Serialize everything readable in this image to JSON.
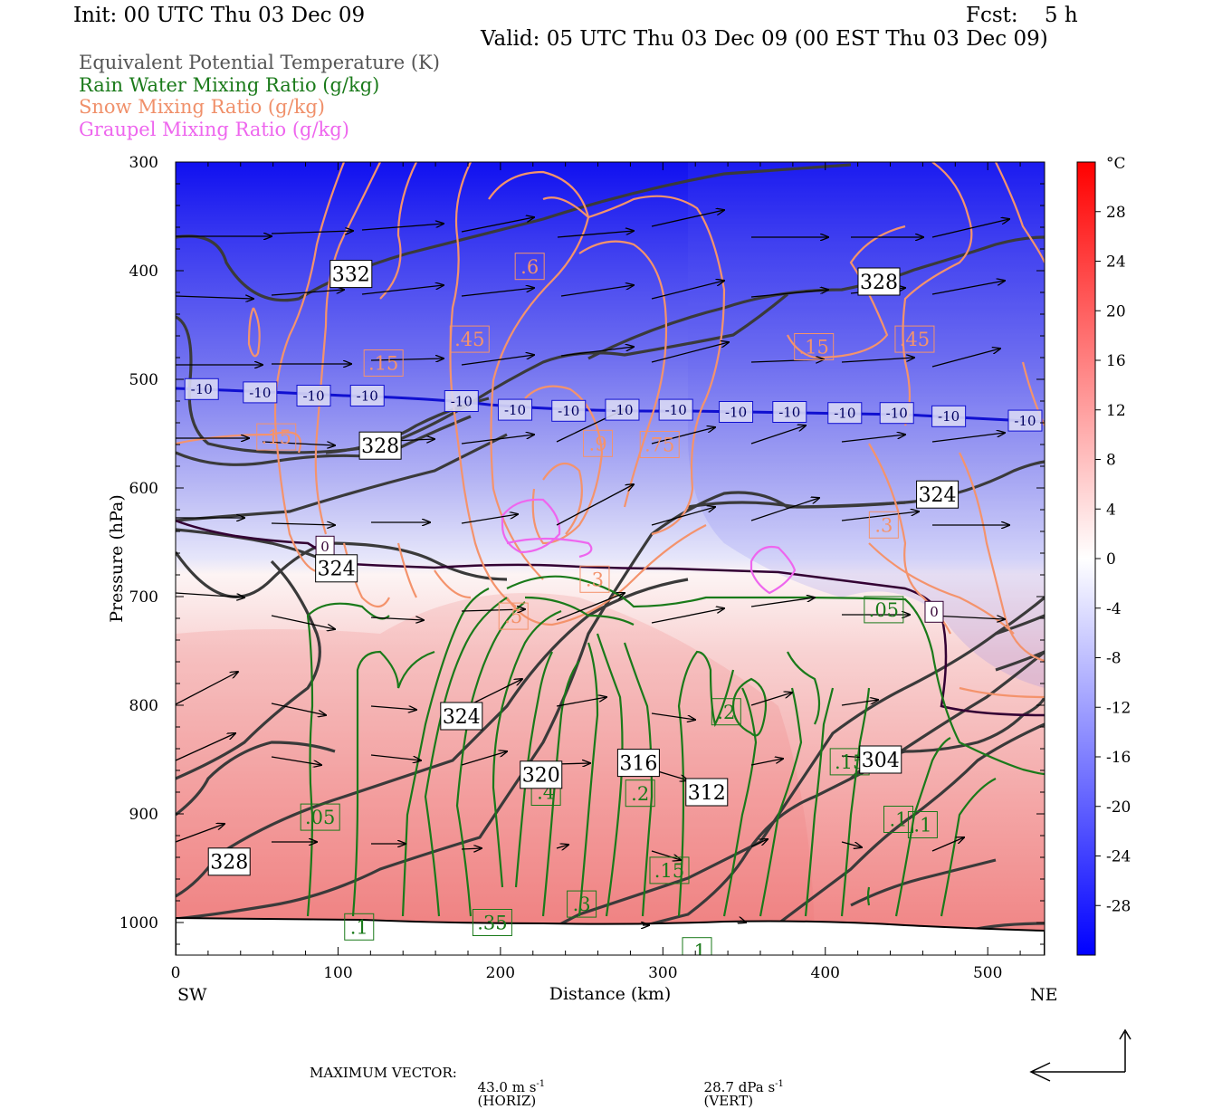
{
  "header": {
    "init": "Init: 00 UTC Thu 03 Dec 09",
    "fcst": "Fcst:    5 h",
    "valid": "Valid: 05 UTC Thu 03 Dec 09 (00 EST Thu 03 Dec 09)"
  },
  "legend": [
    {
      "text": "Equivalent Potential Temperature (K)",
      "color": "#555555"
    },
    {
      "text": "Rain Water Mixing Ratio (g/kg)",
      "color": "#1a7a1a"
    },
    {
      "text": "Snow Mixing Ratio (g/kg)",
      "color": "#f0906a"
    },
    {
      "text": "Graupel Mixing Ratio (g/kg)",
      "color": "#ee66ee"
    }
  ],
  "footer": {
    "max_vector_label": "MAXIMUM VECTOR:",
    "horiz": "43.0 m s",
    "horiz_unit": "(HORIZ)",
    "vert": "28.7 dPa s",
    "vert_unit": "(VERT)",
    "exp": "-1"
  },
  "chart_data": {
    "type": "heatmap",
    "xlabel": "Distance (km)",
    "ylabel": "Pressure (hPa)",
    "x_ticks": [
      "0",
      "100",
      "200",
      "300",
      "400",
      "500"
    ],
    "y_ticks": [
      "300",
      "400",
      "500",
      "600",
      "700",
      "800",
      "900",
      "1000"
    ],
    "xlim": [
      0,
      535
    ],
    "ylim": [
      1030,
      300
    ],
    "x_end_labels": {
      "left": "SW",
      "right": "NE"
    },
    "colorbar": {
      "unit": "°C",
      "labels": [
        "28",
        "24",
        "20",
        "16",
        "12",
        "8",
        "4",
        "0",
        "-4",
        "-8",
        "-12",
        "-16",
        "-20",
        "-24",
        "-28"
      ],
      "range": [
        -32,
        32
      ]
    },
    "theta_e_labels": [
      {
        "text": "332",
        "x": 108,
        "p": 403
      },
      {
        "text": "328",
        "x": 433,
        "p": 410
      },
      {
        "text": "328",
        "x": 126,
        "p": 561
      },
      {
        "text": "324",
        "x": 469,
        "p": 606
      },
      {
        "text": "324",
        "x": 99,
        "p": 674
      },
      {
        "text": "324",
        "x": 176,
        "p": 810
      },
      {
        "text": "320",
        "x": 225,
        "p": 864
      },
      {
        "text": "316",
        "x": 285,
        "p": 853
      },
      {
        "text": "312",
        "x": 327,
        "p": 880
      },
      {
        "text": "304",
        "x": 434,
        "p": 850
      },
      {
        "text": "328",
        "x": 33,
        "p": 944
      }
    ],
    "rain_labels": [
      {
        "text": ".05",
        "x": 89,
        "p": 903
      },
      {
        "text": ".05",
        "x": 436,
        "p": 712
      },
      {
        "text": ".4",
        "x": 228,
        "p": 880
      },
      {
        "text": ".2",
        "x": 286,
        "p": 881
      },
      {
        "text": ".2",
        "x": 339,
        "p": 806
      },
      {
        "text": ".15",
        "x": 415,
        "p": 852
      },
      {
        "text": ".15",
        "x": 304,
        "p": 952
      },
      {
        "text": ".1",
        "x": 460,
        "p": 910
      },
      {
        "text": ".1",
        "x": 445,
        "p": 905
      },
      {
        "text": ".1",
        "x": 113,
        "p": 1004
      },
      {
        "text": ".1",
        "x": 321,
        "p": 1026
      },
      {
        "text": ".3",
        "x": 250,
        "p": 983
      },
      {
        "text": ".35",
        "x": 195,
        "p": 1000
      }
    ],
    "snow_labels": [
      {
        "text": ".6",
        "x": 218,
        "p": 396
      },
      {
        "text": ".45",
        "x": 181,
        "p": 463
      },
      {
        "text": ".45",
        "x": 455,
        "p": 463
      },
      {
        "text": ".15",
        "x": 393,
        "p": 470
      },
      {
        "text": ".15",
        "x": 128,
        "p": 485
      },
      {
        "text": ".15",
        "x": 62,
        "p": 553
      },
      {
        "text": ".9",
        "x": 260,
        "p": 559
      },
      {
        "text": ".75",
        "x": 298,
        "p": 560
      },
      {
        "text": ".3",
        "x": 436,
        "p": 634
      },
      {
        "text": ".3",
        "x": 258,
        "p": 684
      },
      {
        "text": ".5",
        "x": 208,
        "p": 718
      }
    ],
    "isotherm_labels": [
      {
        "text": "-10",
        "x": 16,
        "p": 509
      },
      {
        "text": "-10",
        "x": 52,
        "p": 512
      },
      {
        "text": "-10",
        "x": 85,
        "p": 515
      },
      {
        "text": "-10",
        "x": 118,
        "p": 515
      },
      {
        "text": "-10",
        "x": 176,
        "p": 520
      },
      {
        "text": "-10",
        "x": 209,
        "p": 528
      },
      {
        "text": "-10",
        "x": 242,
        "p": 529
      },
      {
        "text": "-10",
        "x": 275,
        "p": 528
      },
      {
        "text": "-10",
        "x": 308,
        "p": 528
      },
      {
        "text": "-10",
        "x": 345,
        "p": 530
      },
      {
        "text": "-10",
        "x": 378,
        "p": 530
      },
      {
        "text": "-10",
        "x": 412,
        "p": 531
      },
      {
        "text": "-10",
        "x": 444,
        "p": 531
      },
      {
        "text": "-10",
        "x": 476,
        "p": 534
      },
      {
        "text": "-10",
        "x": 523,
        "p": 538
      }
    ],
    "zero_labels": [
      {
        "text": "0",
        "x": 92,
        "p": 654
      },
      {
        "text": "0",
        "x": 467,
        "p": 714
      }
    ]
  }
}
